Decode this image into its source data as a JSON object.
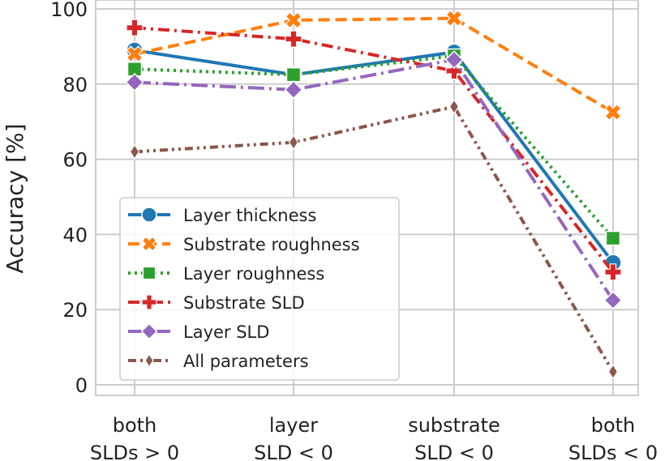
{
  "chart_data": {
    "type": "line",
    "title": "",
    "xlabel": "",
    "ylabel": "Accuracy [%]",
    "ylim": [
      0,
      100
    ],
    "yticks": [
      0,
      20,
      40,
      60,
      80,
      100
    ],
    "grid": true,
    "legend_position": "lower-left",
    "categories": [
      [
        "both",
        "SLDs > 0"
      ],
      [
        "layer",
        "SLD < 0"
      ],
      [
        "substrate",
        "SLD < 0"
      ],
      [
        "both",
        "SLDs < 0"
      ]
    ],
    "series": [
      {
        "name": "Layer thickness",
        "values": [
          89,
          82.5,
          88.5,
          32.5
        ],
        "color": "#1f77b4",
        "dash": "solid",
        "marker": "circle"
      },
      {
        "name": "Substrate roughness",
        "values": [
          88,
          97,
          97.5,
          72.5
        ],
        "color": "#ff7f0e",
        "dash": "dashed",
        "marker": "x-filled"
      },
      {
        "name": "Layer roughness",
        "values": [
          84,
          82.5,
          87.5,
          39
        ],
        "color": "#2ca02c",
        "dash": "dotted",
        "marker": "square"
      },
      {
        "name": "Substrate SLD",
        "values": [
          95,
          92,
          83.5,
          30
        ],
        "color": "#d62728",
        "dash": "dashdot",
        "marker": "plus-filled"
      },
      {
        "name": "Layer SLD",
        "values": [
          80.5,
          78.5,
          86.5,
          22.5
        ],
        "color": "#9467bd",
        "dash": "dashdot-long",
        "marker": "diamond"
      },
      {
        "name": "All parameters",
        "values": [
          62,
          64.5,
          74,
          3.5
        ],
        "color": "#8c564b",
        "dash": "dashdotdot",
        "marker": "thin-diamond"
      }
    ]
  }
}
